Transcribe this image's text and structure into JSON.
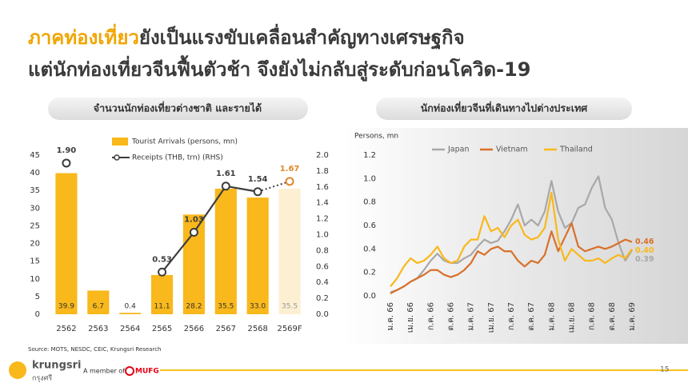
{
  "slide": {
    "title_highlight": "ภาคท่องเที่ยว",
    "title_rest": "ยังเป็นแรงขับเคลื่อนสำคัญทางเศรษฐกิจ",
    "title_line2": "แต่นักท่องเที่ยวจีนฟื้นตัวช้า จึงยังไม่กลับสู่ระดับก่อนโควิด-19",
    "source": "Source: MOTS, NESDC, CEIC, Krungsri Research",
    "brand": "krungsri",
    "brand_thai": "กรุงศรี",
    "member": "A member of",
    "group": "MUFG",
    "page": "15"
  },
  "chart_data": [
    {
      "type": "combo",
      "title": "จำนวนนักท่องเที่ยวต่างชาติ และรายได้",
      "categories": [
        "2562",
        "2563",
        "2564",
        "2565",
        "2566",
        "2567",
        "2568",
        "2569F"
      ],
      "series": [
        {
          "name": "Tourist Arrivals (persons, mn)",
          "type": "bar",
          "color": "#f9b81b",
          "forecast_color": "#fdf0d2",
          "values": [
            39.9,
            6.7,
            0.4,
            11.1,
            28.2,
            35.5,
            33.0,
            35.5
          ],
          "value_labels": [
            "39.9",
            "6.7",
            "0.4",
            "11.1",
            "28.2",
            "35.5",
            "33.0",
            "35.5"
          ]
        },
        {
          "name": "Receipts (THB, trn) (RHS)",
          "type": "line",
          "axis": "y2",
          "color": "#3d3d3d",
          "forecast_color": "#e0882a",
          "values": [
            1.9,
            null,
            null,
            0.53,
            1.03,
            1.61,
            1.54,
            1.67
          ],
          "value_labels": [
            "1.90",
            null,
            null,
            "0.53",
            "1.03",
            "1.61",
            "1.54",
            "1.67"
          ]
        }
      ],
      "ylim": [
        0,
        45
      ],
      "yticks": [
        0,
        5,
        10,
        15,
        20,
        25,
        30,
        35,
        40,
        45
      ],
      "y2lim": [
        0,
        2
      ],
      "y2ticks": [
        {
          "value": 0,
          "label": "0.0"
        },
        0.2,
        0.4,
        0.6,
        0.8,
        {
          "value": 1,
          "label": "1.0"
        },
        1.2,
        1.4,
        1.6,
        1.8,
        {
          "value": 2,
          "label": "2.0"
        }
      ]
    },
    {
      "type": "line",
      "title": "นักท่องเที่ยวจีนที่เดินทางไปต่างประเทศ",
      "ylabel": "Persons, mn",
      "categories": [
        "ม.ค. 66",
        null,
        null,
        "เม.ย. 66",
        null,
        null,
        "ก.ค. 66",
        null,
        null,
        "ต.ค. 66",
        null,
        null,
        "ม.ค. 67",
        null,
        null,
        "เม.ย. 67",
        null,
        null,
        "ก.ค. 67",
        null,
        null,
        "ต.ค. 67",
        null,
        null,
        "ม.ค. 68",
        null,
        null,
        "เม.ย. 68",
        null,
        null,
        "ก.ค. 68",
        null,
        null,
        "ต.ค. 68",
        null,
        null,
        "ม.ค. 69"
      ],
      "series": [
        {
          "name": "Japan",
          "color": "#a8a8a8",
          "values": [
            0.03,
            0.05,
            0.08,
            0.12,
            0.15,
            0.22,
            0.3,
            0.36,
            0.3,
            0.28,
            0.28,
            0.32,
            0.35,
            0.42,
            0.48,
            0.45,
            0.47,
            0.55,
            0.65,
            0.78,
            0.6,
            0.65,
            0.6,
            0.72,
            0.98,
            0.72,
            0.58,
            0.62,
            0.75,
            0.78,
            0.92,
            1.02,
            0.75,
            0.65,
            0.45,
            0.3,
            0.39
          ],
          "value_labels": [
            null,
            null,
            null,
            null,
            null,
            null,
            null,
            null,
            null,
            null,
            null,
            null,
            null,
            null,
            null,
            null,
            null,
            null,
            null,
            null,
            null,
            null,
            null,
            null,
            null,
            null,
            null,
            null,
            null,
            null,
            null,
            null,
            null,
            null,
            null,
            null,
            "0.39"
          ]
        },
        {
          "name": "Vietnam",
          "color": "#d9702a",
          "values": [
            0.02,
            0.05,
            0.08,
            0.12,
            0.15,
            0.18,
            0.22,
            0.22,
            0.18,
            0.16,
            0.18,
            0.22,
            0.28,
            0.38,
            0.35,
            0.4,
            0.42,
            0.38,
            0.38,
            0.3,
            0.25,
            0.3,
            0.28,
            0.35,
            0.55,
            0.38,
            0.5,
            0.62,
            0.42,
            0.38,
            0.4,
            0.42,
            0.4,
            0.42,
            0.45,
            0.48,
            0.46
          ],
          "value_labels": [
            null,
            null,
            null,
            null,
            null,
            null,
            null,
            null,
            null,
            null,
            null,
            null,
            null,
            null,
            null,
            null,
            null,
            null,
            null,
            null,
            null,
            null,
            null,
            null,
            null,
            null,
            null,
            null,
            null,
            null,
            null,
            null,
            null,
            null,
            null,
            null,
            "0.46"
          ]
        },
        {
          "name": "Thailand",
          "color": "#f9b81b",
          "values": [
            0.08,
            0.15,
            0.25,
            0.32,
            0.28,
            0.3,
            0.35,
            0.42,
            0.32,
            0.28,
            0.3,
            0.42,
            0.48,
            0.48,
            0.68,
            0.55,
            0.58,
            0.5,
            0.6,
            0.65,
            0.52,
            0.48,
            0.5,
            0.58,
            0.88,
            0.48,
            0.3,
            0.4,
            0.35,
            0.3,
            0.3,
            0.32,
            0.28,
            0.32,
            0.35,
            0.32,
            0.4
          ],
          "value_labels": [
            null,
            null,
            null,
            null,
            null,
            null,
            null,
            null,
            null,
            null,
            null,
            null,
            null,
            null,
            null,
            null,
            null,
            null,
            null,
            null,
            null,
            null,
            null,
            null,
            null,
            null,
            null,
            null,
            null,
            null,
            null,
            null,
            null,
            null,
            null,
            null,
            "0.40"
          ]
        }
      ],
      "ylim": [
        0,
        1.2
      ],
      "yticks": [
        {
          "value": 0,
          "label": "0.0"
        },
        0.2,
        0.4,
        0.6,
        0.8,
        {
          "value": 1,
          "label": "1.0"
        },
        1.2
      ]
    }
  ]
}
